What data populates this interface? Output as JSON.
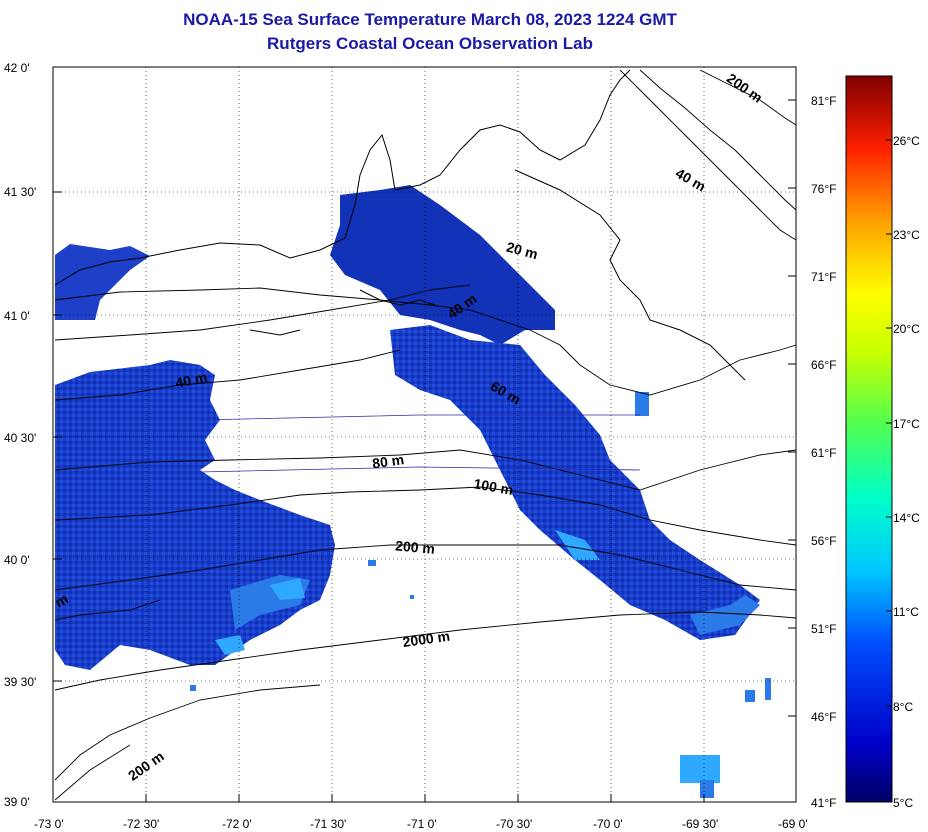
{
  "header": {
    "title": "NOAA-15 Sea Surface Temperature March 08, 2023 1224 GMT",
    "subtitle": "Rutgers Coastal Ocean Observation Lab"
  },
  "axes": {
    "lat_labels": [
      "42 0'",
      "41 30'",
      "41 0'",
      "40 30'",
      "40 0'",
      "39 30'",
      "39 0'"
    ],
    "lon_labels": [
      "-73 0'",
      "-72 30'",
      "-72 0'",
      "-71 30'",
      "-71 0'",
      "-70 30'",
      "-70 0'",
      "-69 30'",
      "-69 0'"
    ]
  },
  "contours": {
    "labels": [
      "200 m",
      "40 m",
      "20 m",
      "40 m",
      "60 m",
      "40 m",
      "80 m",
      "100 m",
      "200 m",
      "2000 m",
      "200 m",
      "m"
    ]
  },
  "colorbar": {
    "fahrenheit": [
      "81°F",
      "76°F",
      "71°F",
      "66°F",
      "61°F",
      "56°F",
      "51°F",
      "46°F",
      "41°F"
    ],
    "celsius": [
      "26°C",
      "23°C",
      "20°C",
      "17°C",
      "14°C",
      "11°C",
      "8°C",
      "5°C"
    ]
  },
  "colors": {
    "title": "#1a1aa6",
    "sst_dark": "#00148c",
    "sst_mid": "#1e46d2",
    "sst_warm": "#2fa8ff",
    "land_outline": "#000000"
  }
}
